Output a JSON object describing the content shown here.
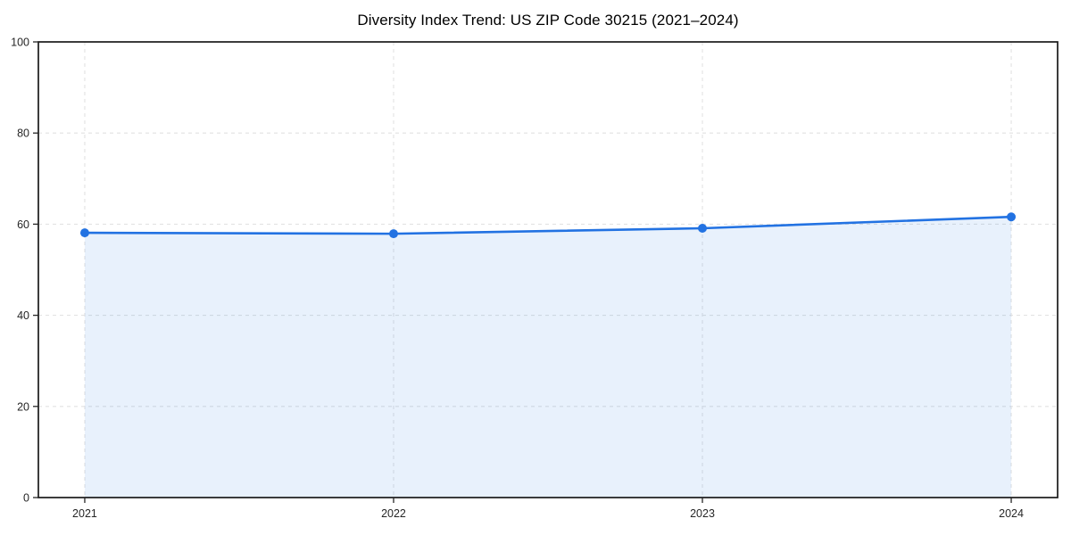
{
  "chart_data": {
    "type": "area",
    "title": "Diversity Index Trend: US ZIP Code 30215 (2021–2024)",
    "categories": [
      "2021",
      "2022",
      "2023",
      "2024"
    ],
    "series": [
      {
        "name": "Diversity Index",
        "values": [
          58.1,
          57.9,
          59.1,
          61.6
        ]
      }
    ],
    "xlabel": "",
    "ylabel": "",
    "ylim": [
      0,
      100
    ],
    "y_ticks": [
      0,
      20,
      40,
      60,
      80,
      100
    ],
    "grid": true,
    "legend": "none",
    "line_color": "#2272e2",
    "fill_color": "rgba(34, 114, 226, 0.10)",
    "grid_color": "#e2e2e2",
    "spine_color": "#1a1a1a",
    "tick_label_color": "#262626",
    "x_margin_frac": 0.0455
  }
}
